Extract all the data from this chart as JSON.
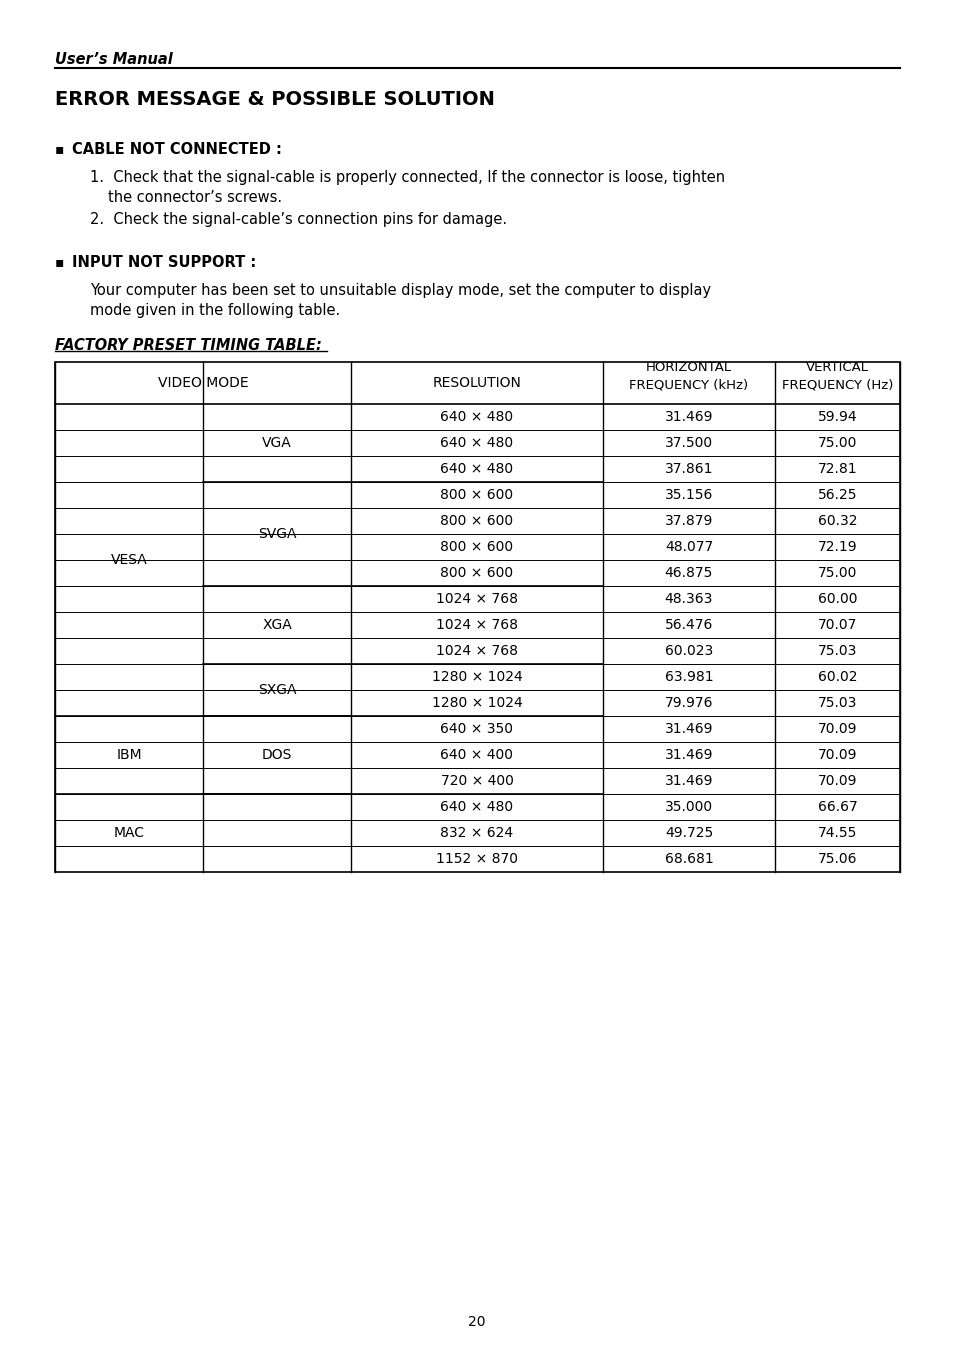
{
  "page_title": "User’s Manual",
  "section_title": "ERROR MESSAGE & POSSIBLE SOLUTION",
  "bullet1_header": "CABLE NOT CONNECTED :",
  "bullet1_line1": "1.  Check that the signal-cable is properly connected, If the connector is loose, tighten",
  "bullet1_line2": "the connector’s screws.",
  "bullet1_line3": "2.  Check the signal-cable’s connection pins for damage.",
  "bullet2_header": "INPUT NOT SUPPORT :",
  "bullet2_line1": "Your computer has been set to unsuitable display mode, set the computer to display",
  "bullet2_line2": "mode given in the following table.",
  "table_title": "FACTORY PRESET TIMING TABLE:",
  "table_rows": [
    [
      "640 × 480",
      "31.469",
      "59.94"
    ],
    [
      "640 × 480",
      "37.500",
      "75.00"
    ],
    [
      "640 × 480",
      "37.861",
      "72.81"
    ],
    [
      "800 × 600",
      "35.156",
      "56.25"
    ],
    [
      "800 × 600",
      "37.879",
      "60.32"
    ],
    [
      "800 × 600",
      "48.077",
      "72.19"
    ],
    [
      "800 × 600",
      "46.875",
      "75.00"
    ],
    [
      "1024 × 768",
      "48.363",
      "60.00"
    ],
    [
      "1024 × 768",
      "56.476",
      "70.07"
    ],
    [
      "1024 × 768",
      "60.023",
      "75.03"
    ],
    [
      "1280 × 1024",
      "63.981",
      "60.02"
    ],
    [
      "1280 × 1024",
      "79.976",
      "75.03"
    ],
    [
      "640 × 350",
      "31.469",
      "70.09"
    ],
    [
      "640 × 400",
      "31.469",
      "70.09"
    ],
    [
      "720 × 400",
      "31.469",
      "70.09"
    ],
    [
      "640 × 480",
      "35.000",
      "66.67"
    ],
    [
      "832 × 624",
      "49.725",
      "74.55"
    ],
    [
      "1152 × 870",
      "68.681",
      "75.06"
    ]
  ],
  "merge_col1": [
    [
      "VESA",
      0,
      11
    ],
    [
      "IBM",
      12,
      14
    ],
    [
      "MAC",
      15,
      17
    ]
  ],
  "merge_col2": [
    [
      "VGA",
      0,
      2
    ],
    [
      "SVGA",
      3,
      6
    ],
    [
      "XGA",
      7,
      9
    ],
    [
      "SXGA",
      10,
      11
    ],
    [
      "DOS",
      12,
      14
    ],
    [
      "",
      15,
      17
    ]
  ],
  "page_number": "20",
  "bg_color": "#ffffff",
  "text_color": "#000000"
}
